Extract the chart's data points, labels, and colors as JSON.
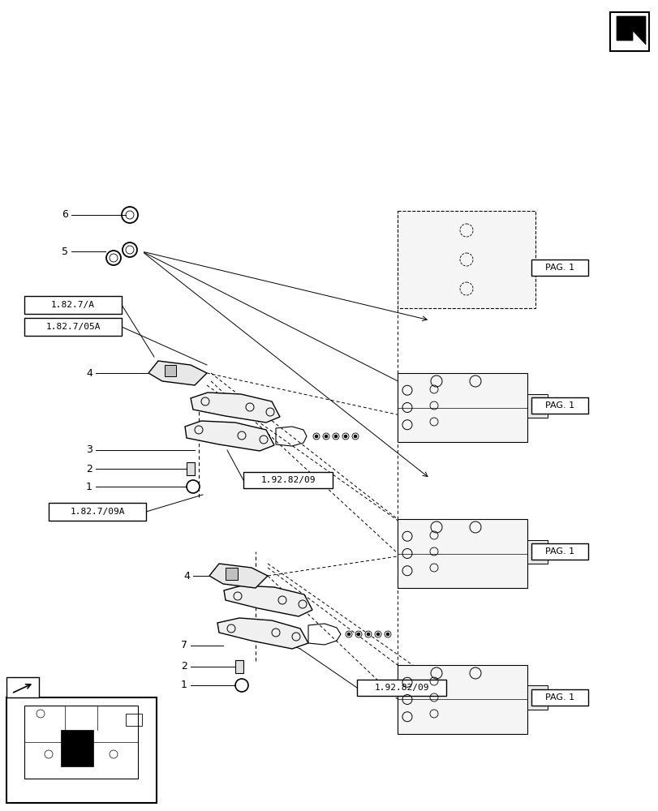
{
  "bg_color": "#ffffff",
  "line_color": "#000000",
  "box_color": "#ffffff",
  "box_edge": "#000000",
  "fig_width": 8.12,
  "fig_height": 10.0,
  "labels": {
    "ref1_top": "1.92.82/09",
    "ref2_mid": "1.92.82/09",
    "ref3_left_top": "1.82.7/09A",
    "ref4_left_bot1": "1.82.7/05A",
    "ref4_left_bot2": "1.82.7/A",
    "pag1_top": "PAG. 1",
    "pag1_mid1": "PAG. 1",
    "pag1_mid2": "PAG. 1",
    "pag1_bot": "PAG. 1"
  },
  "part_numbers": [
    "1",
    "2",
    "7",
    "4",
    "1",
    "2",
    "3",
    "4",
    "5",
    "6"
  ]
}
